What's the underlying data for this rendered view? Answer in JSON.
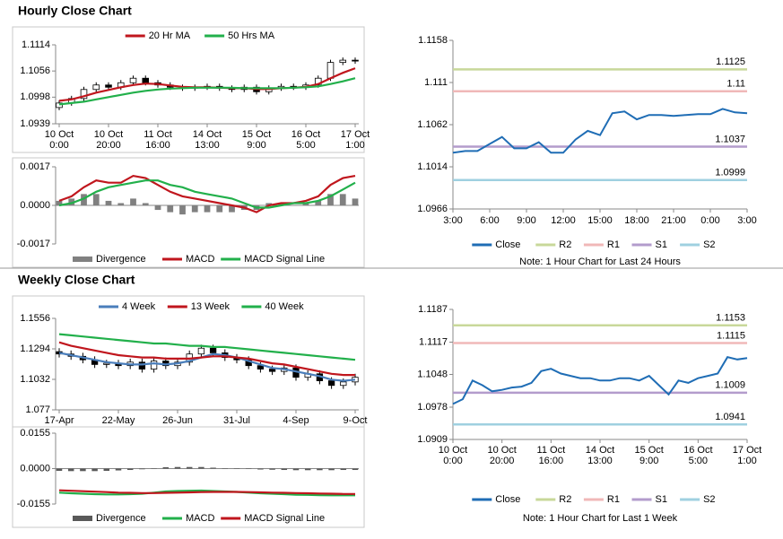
{
  "sections": [
    {
      "title": "Hourly Close Chart"
    },
    {
      "title": "Weekly Close Chart"
    }
  ],
  "chart_data": [
    {
      "type": "candlestick",
      "categories": [
        [
          "10 Oct",
          "0:00"
        ],
        null,
        null,
        null,
        [
          "10 Oct",
          "20:00"
        ],
        null,
        null,
        null,
        [
          "11 Oct",
          "16:00"
        ],
        null,
        null,
        null,
        [
          "14 Oct",
          "13:00"
        ],
        null,
        null,
        null,
        [
          "15 Oct",
          "9:00"
        ],
        null,
        null,
        null,
        [
          "16 Oct",
          "5:00"
        ],
        null,
        null,
        null,
        [
          "17 Oct",
          "1:00"
        ]
      ],
      "open": [
        1.0975,
        1.0985,
        1.0995,
        1.1015,
        1.1025,
        1.102,
        1.103,
        1.104,
        1.103,
        1.1025,
        1.102,
        1.1018,
        1.102,
        1.1022,
        1.1018,
        1.1015,
        1.102,
        1.101,
        1.1018,
        1.1022,
        1.102,
        1.1025,
        1.104,
        1.1075,
        1.108
      ],
      "high": [
        1.0991,
        1.1001,
        1.1021,
        1.1031,
        1.1031,
        1.1036,
        1.1046,
        1.1046,
        1.1036,
        1.1031,
        1.1026,
        1.1026,
        1.1028,
        1.1028,
        1.1024,
        1.1026,
        1.1026,
        1.1024,
        1.1028,
        1.1028,
        1.1031,
        1.1046,
        1.1081,
        1.1086,
        1.1086
      ],
      "low": [
        1.0969,
        1.0979,
        1.0989,
        1.1009,
        1.1014,
        1.1014,
        1.1024,
        1.1024,
        1.1019,
        1.1014,
        1.1012,
        1.1012,
        1.1014,
        1.1012,
        1.1009,
        1.1009,
        1.1004,
        1.1004,
        1.1012,
        1.1014,
        1.1014,
        1.1019,
        1.1034,
        1.1069,
        1.1072
      ],
      "close": [
        1.0985,
        1.0995,
        1.1015,
        1.1025,
        1.102,
        1.103,
        1.104,
        1.103,
        1.1025,
        1.102,
        1.1018,
        1.102,
        1.1022,
        1.1018,
        1.1015,
        1.102,
        1.101,
        1.1018,
        1.1022,
        1.102,
        1.1025,
        1.104,
        1.1075,
        1.108,
        1.1078
      ],
      "series": [
        {
          "name": "20 Hr MA",
          "color": "#c0161d",
          "values": [
            1.099,
            1.0993,
            1.1,
            1.1008,
            1.1014,
            1.102,
            1.1025,
            1.1028,
            1.1027,
            1.1024,
            1.1021,
            1.102,
            1.102,
            1.1019,
            1.1018,
            1.1018,
            1.1016,
            1.1016,
            1.1018,
            1.1019,
            1.1021,
            1.1027,
            1.104,
            1.1052,
            1.1062
          ]
        },
        {
          "name": "50 Hrs MA",
          "color": "#22b04b",
          "values": [
            1.0982,
            1.0985,
            1.0988,
            1.0993,
            1.0998,
            1.1003,
            1.1008,
            1.1012,
            1.1015,
            1.1017,
            1.1018,
            1.1019,
            1.1019,
            1.1019,
            1.1019,
            1.1018,
            1.1018,
            1.1018,
            1.1018,
            1.1019,
            1.102,
            1.1022,
            1.1027,
            1.1033,
            1.104
          ]
        }
      ],
      "ylim": [
        1.0939,
        1.1114
      ],
      "yticks": [
        1.1114,
        1.1056,
        1.0998,
        1.0939
      ]
    },
    {
      "type": "macd",
      "series": [
        {
          "name": "Divergence",
          "color": "#808080",
          "type": "bar",
          "values": [
            0.0002,
            0.0003,
            0.0005,
            0.0005,
            0.0002,
            0.0001,
            0.0003,
            0.0001,
            -0.0002,
            -0.0003,
            -0.0004,
            -0.0003,
            -0.0003,
            -0.0003,
            -0.0003,
            -0.0002,
            -0.0002,
            0.0001,
            0.0001,
            0.0,
            0.0001,
            0.0002,
            0.0005,
            0.0005,
            0.0003
          ]
        },
        {
          "name": "MACD",
          "color": "#c0161d",
          "values": [
            0.0002,
            0.0004,
            0.0008,
            0.0011,
            0.001,
            0.001,
            0.0013,
            0.0012,
            0.0009,
            0.0006,
            0.0004,
            0.0003,
            0.0002,
            0.0001,
            0.0,
            -0.0001,
            -0.0003,
            0.0,
            0.0001,
            0.0001,
            0.0002,
            0.0004,
            0.0009,
            0.0012,
            0.0013
          ]
        },
        {
          "name": "MACD Signal Line",
          "color": "#22b04b",
          "values": [
            0.0,
            0.0001,
            0.0003,
            0.0006,
            0.0008,
            0.0009,
            0.001,
            0.0011,
            0.0011,
            0.0009,
            0.0008,
            0.0006,
            0.0005,
            0.0004,
            0.0003,
            0.0001,
            -0.0001,
            -0.0001,
            0.0,
            0.0001,
            0.0001,
            0.0002,
            0.0004,
            0.0007,
            0.001
          ]
        }
      ],
      "ylim": [
        -0.0017,
        0.0017
      ],
      "yticks": [
        {
          "value": 0.0017,
          "label": "0.0017"
        },
        {
          "value": 0,
          "label": "0.0000"
        },
        {
          "value": -0.0017,
          "label": "-0.0017"
        }
      ]
    },
    {
      "type": "line",
      "categories": [
        "3:00",
        null,
        null,
        "6:00",
        null,
        null,
        "9:00",
        null,
        null,
        "12:00",
        null,
        null,
        "15:00",
        null,
        null,
        "18:00",
        null,
        null,
        "21:00",
        null,
        null,
        "0:00",
        null,
        null,
        "3:00"
      ],
      "series": [
        {
          "name": "Close",
          "color": "#1f6db5",
          "values": [
            1.103,
            1.1032,
            1.1032,
            1.104,
            1.1048,
            1.1035,
            1.1035,
            1.1042,
            1.103,
            1.103,
            1.1045,
            1.1055,
            1.105,
            1.1075,
            1.1077,
            1.1068,
            1.1073,
            1.1073,
            1.1072,
            1.1073,
            1.1074,
            1.1074,
            1.108,
            1.1076,
            1.1075
          ]
        }
      ],
      "levels": [
        {
          "name": "R2",
          "value": 1.1125,
          "color": "#c8d89a"
        },
        {
          "name": "R1",
          "value": 1.11,
          "color": "#f0b8b8"
        },
        {
          "name": "S1",
          "value": 1.1037,
          "color": "#b39ccc"
        },
        {
          "name": "S2",
          "value": 1.0999,
          "color": "#9fd0e0"
        }
      ],
      "ylim": [
        1.0966,
        1.1158
      ],
      "yticks": [
        1.1158,
        1.111,
        1.1062,
        1.1014,
        1.0966
      ],
      "note": "Note: 1 Hour Chart for Last 24 Hours"
    },
    {
      "type": "candlestick",
      "categories": [
        [
          "17-Apr"
        ],
        null,
        null,
        null,
        null,
        [
          "22-May"
        ],
        null,
        null,
        null,
        null,
        [
          "26-Jun"
        ],
        null,
        null,
        null,
        null,
        [
          "31-Jul"
        ],
        null,
        null,
        null,
        null,
        [
          "4-Sep"
        ],
        null,
        null,
        null,
        null,
        [
          "9-Oct"
        ]
      ],
      "open": [
        1.127,
        1.125,
        1.123,
        1.12,
        1.116,
        1.117,
        1.115,
        1.118,
        1.112,
        1.119,
        1.115,
        1.118,
        1.125,
        1.13,
        1.126,
        1.122,
        1.12,
        1.115,
        1.112,
        1.11,
        1.113,
        1.105,
        1.108,
        1.102,
        1.098,
        1.101
      ],
      "high": [
        1.13,
        1.128,
        1.126,
        1.123,
        1.12,
        1.12,
        1.121,
        1.121,
        1.122,
        1.122,
        1.121,
        1.128,
        1.133,
        1.133,
        1.129,
        1.125,
        1.123,
        1.118,
        1.115,
        1.116,
        1.116,
        1.111,
        1.111,
        1.105,
        1.104,
        1.108
      ],
      "low": [
        1.122,
        1.12,
        1.117,
        1.113,
        1.113,
        1.112,
        1.112,
        1.109,
        1.109,
        1.112,
        1.112,
        1.115,
        1.122,
        1.123,
        1.119,
        1.117,
        1.112,
        1.109,
        1.107,
        1.107,
        1.102,
        1.102,
        1.099,
        1.095,
        1.095,
        1.098
      ],
      "close": [
        1.125,
        1.123,
        1.12,
        1.116,
        1.117,
        1.115,
        1.118,
        1.112,
        1.119,
        1.115,
        1.118,
        1.125,
        1.13,
        1.126,
        1.122,
        1.12,
        1.115,
        1.112,
        1.11,
        1.113,
        1.105,
        1.108,
        1.102,
        1.098,
        1.101,
        1.105
      ],
      "series": [
        {
          "name": "4 Week",
          "color": "#4a7ebb",
          "values": [
            1.126,
            1.124,
            1.122,
            1.12,
            1.118,
            1.117,
            1.116,
            1.116,
            1.117,
            1.116,
            1.117,
            1.119,
            1.122,
            1.125,
            1.124,
            1.122,
            1.119,
            1.116,
            1.113,
            1.112,
            1.11,
            1.108,
            1.106,
            1.103,
            1.102,
            1.103
          ]
        },
        {
          "name": "13 Week",
          "color": "#c0161d",
          "values": [
            1.135,
            1.132,
            1.13,
            1.128,
            1.126,
            1.124,
            1.123,
            1.122,
            1.122,
            1.121,
            1.121,
            1.121,
            1.122,
            1.123,
            1.123,
            1.122,
            1.121,
            1.119,
            1.117,
            1.116,
            1.114,
            1.112,
            1.11,
            1.108,
            1.107,
            1.107
          ]
        },
        {
          "name": "40 Week",
          "color": "#22b04b",
          "values": [
            1.142,
            1.141,
            1.14,
            1.139,
            1.138,
            1.137,
            1.136,
            1.135,
            1.134,
            1.134,
            1.133,
            1.132,
            1.132,
            1.131,
            1.131,
            1.13,
            1.129,
            1.128,
            1.127,
            1.126,
            1.125,
            1.124,
            1.123,
            1.122,
            1.121,
            1.12
          ]
        }
      ],
      "ylim": [
        1.077,
        1.1556
      ],
      "yticks": [
        1.1556,
        1.1294,
        1.1032,
        1.077
      ]
    },
    {
      "type": "macd",
      "series": [
        {
          "name": "Divergence",
          "color": "#595959",
          "type": "bar",
          "values": [
            -0.001,
            -0.0011,
            -0.0011,
            -0.0011,
            -0.001,
            -0.0008,
            -0.0006,
            -0.0003,
            0.0002,
            0.0006,
            0.0007,
            0.0007,
            0.0007,
            0.0004,
            0.0002,
            0.0,
            -0.0002,
            -0.0004,
            -0.0005,
            -0.0006,
            -0.0007,
            -0.0007,
            -0.0007,
            -0.0007,
            -0.0006,
            -0.0006
          ]
        },
        {
          "name": "MACD",
          "color": "#22b04b",
          "values": [
            -0.0105,
            -0.0108,
            -0.011,
            -0.0112,
            -0.0113,
            -0.0113,
            -0.0112,
            -0.011,
            -0.0105,
            -0.01,
            -0.0098,
            -0.0097,
            -0.0096,
            -0.0098,
            -0.01,
            -0.0102,
            -0.0105,
            -0.0108,
            -0.011,
            -0.0112,
            -0.0114,
            -0.0115,
            -0.0116,
            -0.0117,
            -0.0117,
            -0.0117
          ]
        },
        {
          "name": "MACD Signal Line",
          "color": "#c0161d",
          "values": [
            -0.0095,
            -0.0097,
            -0.0099,
            -0.0101,
            -0.0103,
            -0.0105,
            -0.0106,
            -0.0107,
            -0.0107,
            -0.0106,
            -0.0105,
            -0.0104,
            -0.0103,
            -0.0102,
            -0.0102,
            -0.0102,
            -0.0103,
            -0.0104,
            -0.0105,
            -0.0106,
            -0.0107,
            -0.0108,
            -0.0109,
            -0.011,
            -0.0111,
            -0.0111
          ]
        }
      ],
      "ylim": [
        -0.0155,
        0.0155
      ],
      "yticks": [
        {
          "value": 0.0155,
          "label": "0.0155"
        },
        {
          "value": 0,
          "label": "0.0000"
        },
        {
          "value": -0.0155,
          "label": "-0.0155"
        }
      ]
    },
    {
      "type": "line",
      "categories": [
        [
          "10 Oct",
          "0:00"
        ],
        null,
        null,
        null,
        null,
        [
          "10 Oct",
          "20:00"
        ],
        null,
        null,
        null,
        null,
        [
          "11 Oct",
          "16:00"
        ],
        null,
        null,
        null,
        null,
        [
          "14 Oct",
          "13:00"
        ],
        null,
        null,
        null,
        null,
        [
          "15 Oct",
          "9:00"
        ],
        null,
        null,
        null,
        null,
        [
          "16 Oct",
          "5:00"
        ],
        null,
        null,
        null,
        null,
        [
          "17 Oct",
          "1:00"
        ]
      ],
      "series": [
        {
          "name": "Close",
          "color": "#1f6db5",
          "values": [
            1.0985,
            1.0995,
            1.1035,
            1.1025,
            1.1012,
            1.1015,
            1.102,
            1.1022,
            1.103,
            1.1055,
            1.106,
            1.105,
            1.1045,
            1.104,
            1.104,
            1.1035,
            1.1035,
            1.104,
            1.104,
            1.1035,
            1.1045,
            1.1025,
            1.1005,
            1.1035,
            1.103,
            1.104,
            1.1045,
            1.105,
            1.1085,
            1.108,
            1.1083
          ]
        }
      ],
      "levels": [
        {
          "name": "R2",
          "value": 1.1153,
          "color": "#c8d89a"
        },
        {
          "name": "R1",
          "value": 1.1115,
          "color": "#f0b8b8"
        },
        {
          "name": "S1",
          "value": 1.1009,
          "color": "#b39ccc"
        },
        {
          "name": "S2",
          "value": 1.0941,
          "color": "#9fd0e0"
        }
      ],
      "ylim": [
        1.0909,
        1.1187
      ],
      "yticks": [
        1.1187,
        1.1117,
        1.1048,
        1.0978,
        1.0909
      ],
      "note": "Note: 1 Hour Chart for Last 1 Week"
    }
  ]
}
